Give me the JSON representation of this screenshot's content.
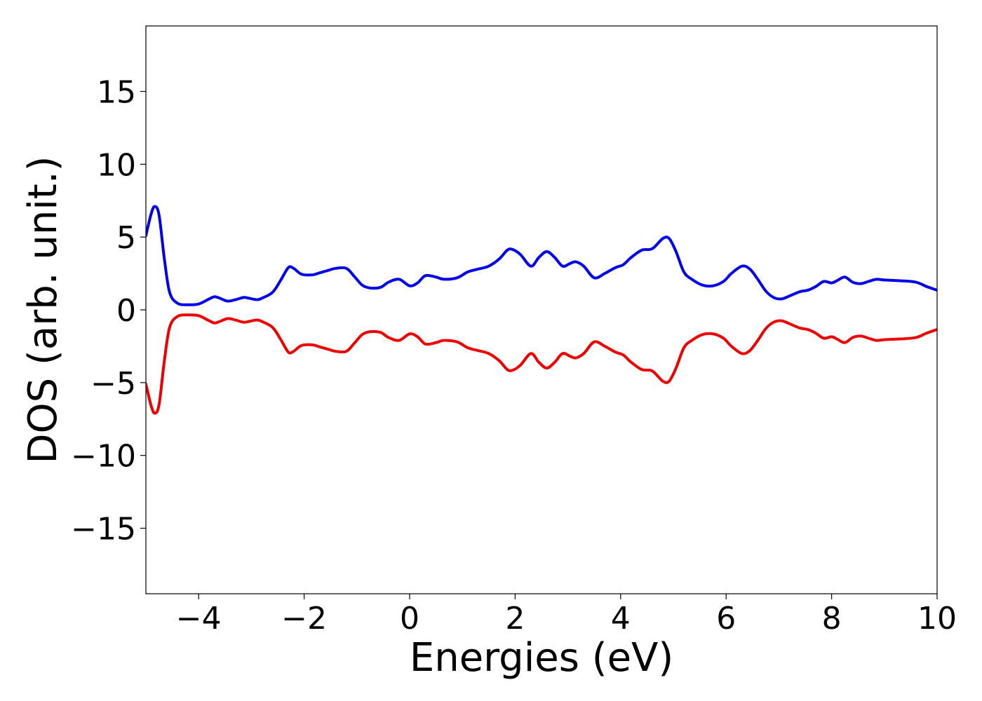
{
  "chart_data": {
    "type": "line",
    "title": "",
    "xlabel": "Energies (eV)",
    "ylabel": "DOS (arb. unit.)",
    "xlim": [
      -5,
      10
    ],
    "ylim": [
      -19.5,
      19.5
    ],
    "grid": false,
    "legend": "none",
    "x_ticks": [
      {
        "value": -4,
        "label": "−4"
      },
      {
        "value": -2,
        "label": "−2"
      },
      {
        "value": 0,
        "label": "0"
      },
      {
        "value": 2,
        "label": "2"
      },
      {
        "value": 4,
        "label": "4"
      },
      {
        "value": 6,
        "label": "6"
      },
      {
        "value": 8,
        "label": "8"
      },
      {
        "value": 10,
        "label": "10"
      }
    ],
    "y_ticks": [
      {
        "value": 15,
        "label": "15"
      },
      {
        "value": 10,
        "label": "10"
      },
      {
        "value": 5,
        "label": "5"
      },
      {
        "value": 0,
        "label": "0"
      },
      {
        "value": -5,
        "label": "−5"
      },
      {
        "value": -10,
        "label": "−10"
      },
      {
        "value": -15,
        "label": "−15"
      }
    ],
    "series": [
      {
        "color": "#0000ee",
        "x": [
          -5.0,
          -4.9,
          -4.83,
          -4.75,
          -4.65,
          -4.55,
          -4.4,
          -4.2,
          -4.0,
          -3.8,
          -3.7,
          -3.6,
          -3.45,
          -3.3,
          -3.15,
          -3.05,
          -2.9,
          -2.8,
          -2.6,
          -2.45,
          -2.3,
          -2.2,
          -2.05,
          -1.85,
          -1.7,
          -1.55,
          -1.4,
          -1.2,
          -1.05,
          -0.9,
          -0.75,
          -0.55,
          -0.4,
          -0.2,
          0.0,
          0.15,
          0.3,
          0.5,
          0.65,
          0.9,
          1.1,
          1.3,
          1.5,
          1.7,
          1.85,
          1.95,
          2.1,
          2.3,
          2.45,
          2.6,
          2.75,
          2.9,
          3.05,
          3.15,
          3.3,
          3.5,
          3.7,
          3.9,
          4.05,
          4.2,
          4.4,
          4.6,
          4.8,
          4.92,
          5.05,
          5.2,
          5.35,
          5.55,
          5.75,
          5.95,
          6.1,
          6.3,
          6.45,
          6.6,
          6.75,
          6.9,
          7.05,
          7.2,
          7.4,
          7.55,
          7.7,
          7.85,
          8.0,
          8.1,
          8.25,
          8.4,
          8.55,
          8.7,
          8.85,
          9.0,
          9.3,
          9.6,
          9.8,
          10.0
        ],
        "y": [
          5.1,
          6.6,
          7.1,
          6.5,
          3.5,
          1.2,
          0.45,
          0.35,
          0.4,
          0.75,
          0.9,
          0.8,
          0.6,
          0.7,
          0.85,
          0.8,
          0.7,
          0.8,
          1.2,
          2.0,
          2.9,
          2.85,
          2.45,
          2.4,
          2.55,
          2.7,
          2.85,
          2.85,
          2.3,
          1.7,
          1.5,
          1.55,
          1.9,
          2.1,
          1.65,
          1.85,
          2.35,
          2.25,
          2.1,
          2.2,
          2.6,
          2.8,
          3.0,
          3.5,
          4.1,
          4.15,
          3.8,
          3.0,
          3.6,
          4.0,
          3.6,
          3.0,
          3.2,
          3.3,
          3.0,
          2.2,
          2.5,
          2.9,
          3.1,
          3.6,
          4.1,
          4.2,
          4.9,
          4.9,
          4.0,
          2.6,
          2.1,
          1.7,
          1.65,
          1.95,
          2.5,
          3.0,
          2.8,
          2.1,
          1.3,
          0.85,
          0.75,
          0.95,
          1.25,
          1.35,
          1.6,
          1.95,
          1.85,
          2.0,
          2.25,
          1.9,
          1.8,
          1.95,
          2.1,
          2.05,
          2.0,
          1.9,
          1.6,
          1.35
        ]
      },
      {
        "color": "#ee0000",
        "x": [
          -5.0,
          -4.9,
          -4.83,
          -4.75,
          -4.65,
          -4.55,
          -4.4,
          -4.2,
          -4.0,
          -3.8,
          -3.7,
          -3.6,
          -3.45,
          -3.3,
          -3.15,
          -3.05,
          -2.9,
          -2.8,
          -2.6,
          -2.45,
          -2.3,
          -2.2,
          -2.05,
          -1.85,
          -1.7,
          -1.55,
          -1.4,
          -1.2,
          -1.05,
          -0.9,
          -0.75,
          -0.55,
          -0.4,
          -0.2,
          0.0,
          0.15,
          0.3,
          0.5,
          0.65,
          0.9,
          1.1,
          1.3,
          1.5,
          1.7,
          1.85,
          1.95,
          2.1,
          2.3,
          2.45,
          2.6,
          2.75,
          2.9,
          3.05,
          3.15,
          3.3,
          3.5,
          3.7,
          3.9,
          4.05,
          4.2,
          4.4,
          4.6,
          4.8,
          4.92,
          5.05,
          5.2,
          5.35,
          5.55,
          5.75,
          5.95,
          6.1,
          6.3,
          6.45,
          6.6,
          6.75,
          6.9,
          7.05,
          7.2,
          7.4,
          7.55,
          7.7,
          7.85,
          8.0,
          8.1,
          8.25,
          8.4,
          8.55,
          8.7,
          8.85,
          9.0,
          9.3,
          9.6,
          9.8,
          10.0
        ],
        "y": [
          -5.1,
          -6.6,
          -7.1,
          -6.5,
          -3.5,
          -1.2,
          -0.45,
          -0.35,
          -0.4,
          -0.75,
          -0.9,
          -0.8,
          -0.6,
          -0.7,
          -0.85,
          -0.8,
          -0.7,
          -0.8,
          -1.2,
          -2.0,
          -2.9,
          -2.85,
          -2.45,
          -2.4,
          -2.55,
          -2.7,
          -2.85,
          -2.85,
          -2.3,
          -1.7,
          -1.5,
          -1.55,
          -1.9,
          -2.1,
          -1.65,
          -1.85,
          -2.35,
          -2.25,
          -2.1,
          -2.2,
          -2.6,
          -2.8,
          -3.0,
          -3.5,
          -4.1,
          -4.15,
          -3.8,
          -3.0,
          -3.6,
          -4.0,
          -3.6,
          -3.0,
          -3.2,
          -3.3,
          -3.0,
          -2.2,
          -2.5,
          -2.9,
          -3.1,
          -3.6,
          -4.1,
          -4.2,
          -4.9,
          -4.9,
          -4.0,
          -2.6,
          -2.1,
          -1.7,
          -1.65,
          -1.95,
          -2.5,
          -3.0,
          -2.8,
          -2.1,
          -1.3,
          -0.85,
          -0.75,
          -0.95,
          -1.25,
          -1.35,
          -1.6,
          -1.95,
          -1.85,
          -2.0,
          -2.25,
          -1.9,
          -1.8,
          -1.95,
          -2.1,
          -2.05,
          -2.0,
          -1.9,
          -1.6,
          -1.35
        ]
      }
    ]
  }
}
